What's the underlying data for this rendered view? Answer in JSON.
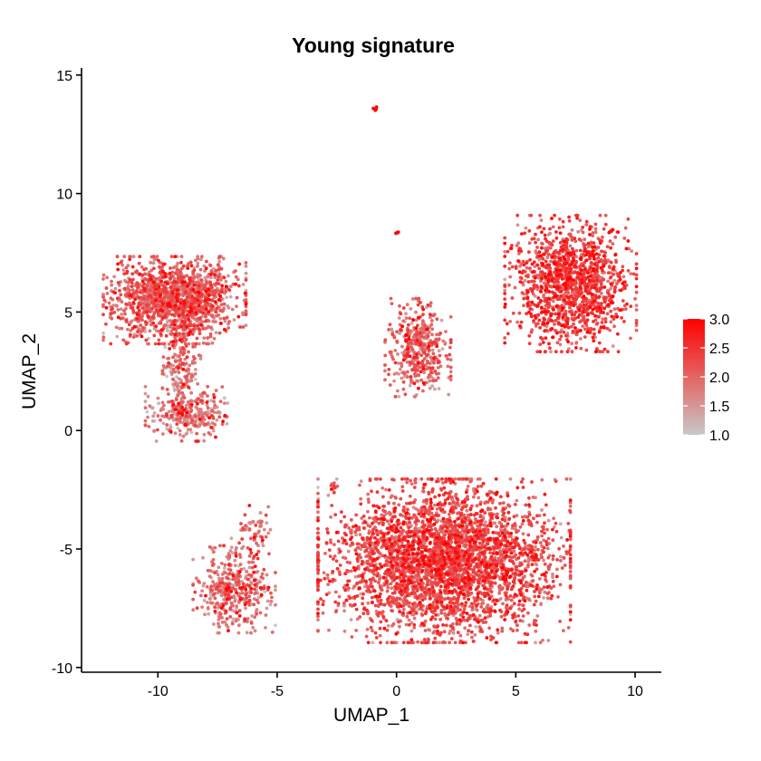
{
  "chart_data": {
    "type": "scatter",
    "title": "Young signature",
    "xlabel": "UMAP_1",
    "ylabel": "UMAP_2",
    "xlim": [
      -13.2,
      11.1
    ],
    "ylim": [
      -10.2,
      15.3
    ],
    "xticks": [
      -10,
      -5,
      0,
      5,
      10
    ],
    "yticks": [
      -10,
      -5,
      0,
      5,
      10,
      15
    ],
    "grid": false,
    "legend": {
      "position": "right",
      "type": "colorbar",
      "min": 1.0,
      "max": 3.0,
      "ticks": [
        3.0,
        2.5,
        2.0,
        1.5,
        1.0
      ],
      "low_color": "#c8c8c8",
      "high_color": "#ff0000"
    },
    "clusters": [
      {
        "id": "upper-left",
        "cx": -9.3,
        "cy": 5.5,
        "sx": 1.3,
        "sy": 0.8,
        "n": 1500,
        "mean": 1.95
      },
      {
        "id": "left-neck",
        "cx": -9.0,
        "cy": 2.7,
        "sx": 0.35,
        "sy": 0.9,
        "n": 160,
        "mean": 1.8
      },
      {
        "id": "left-bottom",
        "cx": -8.8,
        "cy": 0.7,
        "sx": 0.75,
        "sy": 0.5,
        "n": 300,
        "mean": 1.7
      },
      {
        "id": "center-small",
        "cx": 0.9,
        "cy": 3.5,
        "sx": 0.6,
        "sy": 0.9,
        "n": 420,
        "mean": 1.9
      },
      {
        "id": "right-top",
        "cx": 7.3,
        "cy": 6.2,
        "sx": 1.2,
        "sy": 1.25,
        "n": 1300,
        "mean": 2.25
      },
      {
        "id": "bottom-small",
        "cx": -6.8,
        "cy": -6.7,
        "sx": 0.75,
        "sy": 0.8,
        "n": 420,
        "mean": 1.85
      },
      {
        "id": "bottom-small-arm",
        "cx": -6.0,
        "cy": -4.2,
        "sx": 0.4,
        "sy": 0.45,
        "n": 60,
        "mean": 1.9
      },
      {
        "id": "bottom-large",
        "cx": 2.0,
        "cy": -5.5,
        "sx": 2.3,
        "sy": 1.5,
        "n": 3600,
        "mean": 2.15
      },
      {
        "id": "outlier-1",
        "cx": -0.9,
        "cy": 13.6,
        "sx": 0.05,
        "sy": 0.05,
        "n": 4,
        "mean": 2.8
      },
      {
        "id": "outlier-2",
        "cx": 0.0,
        "cy": 8.35,
        "sx": 0.06,
        "sy": 0.03,
        "n": 5,
        "mean": 2.8
      },
      {
        "id": "outlier-3",
        "cx": -2.6,
        "cy": -2.4,
        "sx": 0.1,
        "sy": 0.15,
        "n": 10,
        "mean": 2.3
      }
    ]
  }
}
